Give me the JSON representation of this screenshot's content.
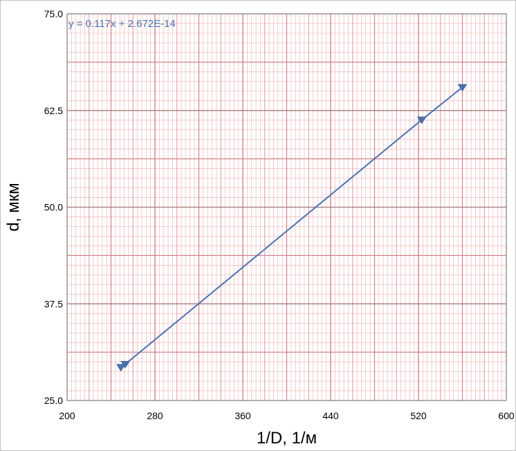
{
  "chart_data": {
    "type": "line",
    "title": "",
    "xlabel": "1/D, 1/м",
    "ylabel": "d, мкм",
    "xlim": [
      200,
      600
    ],
    "ylim": [
      25.0,
      75.0
    ],
    "x_ticks": [
      200,
      280,
      360,
      440,
      520,
      600
    ],
    "y_ticks": [
      25.0,
      37.5,
      50.0,
      62.5,
      75.0
    ],
    "x_tick_labels": [
      "200",
      "280",
      "360",
      "440",
      "520",
      "600"
    ],
    "y_tick_labels": [
      "25.0",
      "37.5",
      "50.0",
      "62.5",
      "75.0"
    ],
    "grid": true,
    "annotation": "y = 0.117x + 2.672E-14",
    "series": [
      {
        "marker": "triangle-down",
        "color": "#4a72b0",
        "points": [
          {
            "x": 249,
            "y": 29.3
          },
          {
            "x": 253,
            "y": 29.7
          },
          {
            "x": 523,
            "y": 61.3
          },
          {
            "x": 560,
            "y": 65.5
          }
        ]
      }
    ],
    "colors": {
      "major_grid": "#cc7a80",
      "minor_grid": "#efb6b9",
      "series": "#4a72b0"
    }
  }
}
